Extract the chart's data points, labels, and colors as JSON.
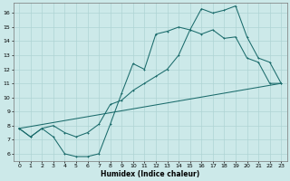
{
  "xlabel": "Humidex (Indice chaleur)",
  "xlim": [
    -0.5,
    23.5
  ],
  "ylim": [
    5.5,
    16.7
  ],
  "yticks": [
    6,
    7,
    8,
    9,
    10,
    11,
    12,
    13,
    14,
    15,
    16
  ],
  "xticks": [
    0,
    1,
    2,
    3,
    4,
    5,
    6,
    7,
    8,
    9,
    10,
    11,
    12,
    13,
    14,
    15,
    16,
    17,
    18,
    19,
    20,
    21,
    22,
    23
  ],
  "bg_color": "#cce9e9",
  "line_color": "#1a6b6b",
  "grid_color": "#aed4d4",
  "line1_x": [
    0,
    1,
    2,
    3,
    4,
    5,
    6,
    7,
    8,
    9,
    10,
    11,
    12,
    13,
    14,
    15,
    16,
    17,
    18,
    19,
    20,
    21,
    22,
    23
  ],
  "line1_y": [
    7.8,
    7.2,
    7.8,
    8.0,
    7.5,
    7.2,
    7.5,
    8.1,
    9.5,
    9.8,
    10.5,
    11.0,
    11.5,
    12.0,
    13.0,
    14.8,
    16.3,
    16.0,
    16.2,
    16.5,
    14.3,
    12.8,
    12.5,
    11.0
  ],
  "line2_x": [
    0,
    1,
    2,
    3,
    4,
    5,
    6,
    7,
    8,
    9,
    10,
    11,
    12,
    13,
    14,
    15,
    16,
    17,
    18,
    19,
    20,
    21,
    22,
    23
  ],
  "line2_y": [
    7.8,
    7.2,
    7.8,
    7.2,
    6.0,
    5.8,
    5.8,
    6.0,
    8.1,
    10.3,
    12.4,
    12.0,
    14.5,
    14.7,
    15.0,
    14.8,
    14.5,
    14.8,
    14.2,
    14.3,
    12.8,
    12.5,
    11.0,
    11.0
  ],
  "line3_x": [
    0,
    23
  ],
  "line3_y": [
    7.8,
    11.0
  ]
}
